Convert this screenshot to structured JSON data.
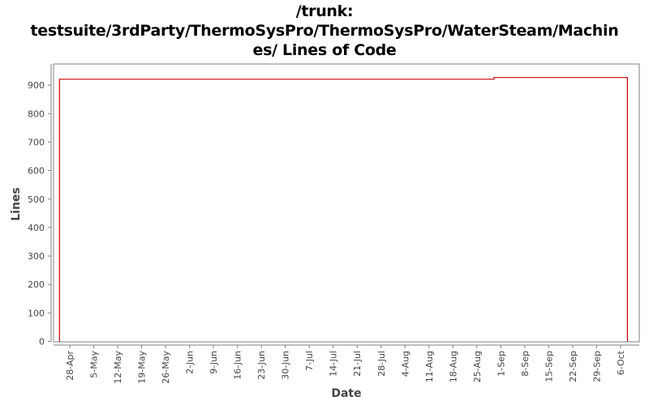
{
  "title": {
    "line1": "/trunk:",
    "line2": "testsuite/3rdParty/ThermoSysPro/ThermoSysPro/WaterSteam/Machin",
    "line3": "es/ Lines of Code"
  },
  "colors": {
    "series": "#cc0000",
    "axis": "#808080",
    "frame": "#808080",
    "background": "#ffffff",
    "text": "#444444"
  },
  "chart_data": {
    "type": "line",
    "step": true,
    "title": "/trunk: testsuite/3rdParty/ThermoSysPro/ThermoSysPro/WaterSteam/Machines/ Lines of Code",
    "xlabel": "Date",
    "ylabel": "Lines",
    "ylim": [
      0,
      970
    ],
    "yticks": [
      0,
      100,
      200,
      300,
      400,
      500,
      600,
      700,
      800,
      900
    ],
    "xticks": [
      "28-Apr",
      "5-May",
      "12-May",
      "19-May",
      "26-May",
      "2-Jun",
      "9-Jun",
      "16-Jun",
      "23-Jun",
      "30-Jun",
      "7-Jul",
      "14-Jul",
      "21-Jul",
      "28-Jul",
      "4-Aug",
      "11-Aug",
      "18-Aug",
      "25-Aug",
      "1-Sep",
      "8-Sep",
      "15-Sep",
      "22-Sep",
      "29-Sep",
      "6-Oct"
    ],
    "grid": false,
    "legend": null,
    "series": [
      {
        "name": "Lines of Code",
        "points": [
          {
            "x": "25-Apr",
            "y": 0
          },
          {
            "x": "25-Apr",
            "y": 921
          },
          {
            "x": "30-Aug",
            "y": 921
          },
          {
            "x": "30-Aug",
            "y": 927
          },
          {
            "x": "8-Oct",
            "y": 927
          },
          {
            "x": "8-Oct",
            "y": 0
          }
        ]
      }
    ]
  }
}
